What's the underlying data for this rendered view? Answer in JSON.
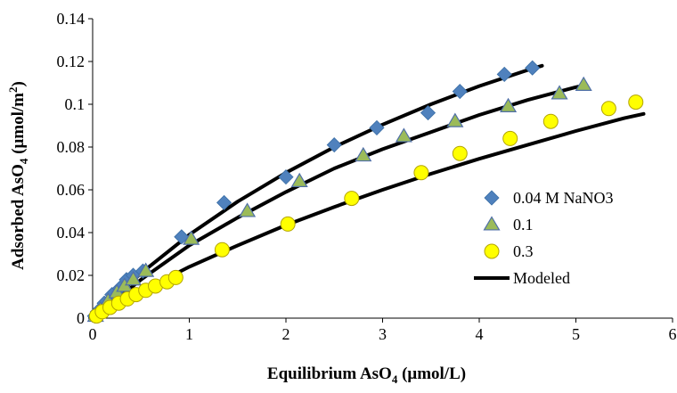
{
  "chart_data": {
    "type": "scatter",
    "xlabel": {
      "main": "Equilibrium AsO",
      "sub": "4",
      "tail": " (μmol/L)"
    },
    "ylabel": {
      "main": "Adsorbed AsO",
      "sub": "4",
      "tail": " (μmol/m",
      "sup": "2",
      "end": ")"
    },
    "xlim": [
      0,
      6
    ],
    "ylim": [
      0,
      0.14
    ],
    "xticks": [
      {
        "v": 0,
        "label": "0"
      },
      {
        "v": 1,
        "label": "1"
      },
      {
        "v": 2,
        "label": "2"
      },
      {
        "v": 3,
        "label": "3"
      },
      {
        "v": 4,
        "label": "4"
      },
      {
        "v": 5,
        "label": "5"
      },
      {
        "v": 6,
        "label": "6"
      }
    ],
    "yticks": [
      {
        "v": 0,
        "label": "0"
      },
      {
        "v": 0.02,
        "label": "0.02"
      },
      {
        "v": 0.04,
        "label": "0.04"
      },
      {
        "v": 0.06,
        "label": "0.06"
      },
      {
        "v": 0.08,
        "label": "0.08"
      },
      {
        "v": 0.1,
        "label": "0.1"
      },
      {
        "v": 0.12,
        "label": "0.12"
      },
      {
        "v": 0.14,
        "label": "0.14"
      }
    ],
    "series": [
      {
        "name": "0.04 M NaNO3",
        "marker": "diamond",
        "color": "#4f81bd",
        "points": [
          [
            0.02,
            0.001
          ],
          [
            0.05,
            0.003
          ],
          [
            0.12,
            0.007
          ],
          [
            0.2,
            0.011
          ],
          [
            0.28,
            0.014
          ],
          [
            0.35,
            0.018
          ],
          [
            0.42,
            0.02
          ],
          [
            0.52,
            0.022
          ],
          [
            0.92,
            0.038
          ],
          [
            1.36,
            0.054
          ],
          [
            2.0,
            0.066
          ],
          [
            2.5,
            0.081
          ],
          [
            2.94,
            0.089
          ],
          [
            3.47,
            0.096
          ],
          [
            3.8,
            0.106
          ],
          [
            4.26,
            0.114
          ],
          [
            4.55,
            0.117
          ]
        ]
      },
      {
        "name": "0.1",
        "marker": "triangle",
        "color": "#9bbb59",
        "points": [
          [
            0.03,
            0.001
          ],
          [
            0.08,
            0.004
          ],
          [
            0.16,
            0.008
          ],
          [
            0.25,
            0.012
          ],
          [
            0.33,
            0.015
          ],
          [
            0.42,
            0.018
          ],
          [
            0.55,
            0.022
          ],
          [
            1.02,
            0.037
          ],
          [
            1.6,
            0.05
          ],
          [
            2.14,
            0.064
          ],
          [
            2.8,
            0.076
          ],
          [
            3.22,
            0.085
          ],
          [
            3.75,
            0.092
          ],
          [
            4.3,
            0.099
          ],
          [
            4.83,
            0.105
          ],
          [
            5.08,
            0.109
          ]
        ]
      },
      {
        "name": "0.3",
        "marker": "circle",
        "color": "#ffff00",
        "points": [
          [
            0.04,
            0.001
          ],
          [
            0.1,
            0.003
          ],
          [
            0.18,
            0.005
          ],
          [
            0.27,
            0.007
          ],
          [
            0.36,
            0.009
          ],
          [
            0.45,
            0.011
          ],
          [
            0.55,
            0.013
          ],
          [
            0.65,
            0.015
          ],
          [
            0.77,
            0.017
          ],
          [
            0.86,
            0.019
          ],
          [
            1.34,
            0.032
          ],
          [
            2.02,
            0.044
          ],
          [
            2.68,
            0.056
          ],
          [
            3.4,
            0.068
          ],
          [
            3.8,
            0.077
          ],
          [
            4.32,
            0.084
          ],
          [
            4.74,
            0.092
          ],
          [
            5.34,
            0.098
          ],
          [
            5.62,
            0.101
          ]
        ]
      }
    ],
    "model_curves": [
      {
        "name": "Modeled",
        "color": "#000000",
        "points": [
          [
            0,
            0
          ],
          [
            0.25,
            0.0105
          ],
          [
            0.5,
            0.021
          ],
          [
            1.0,
            0.039
          ],
          [
            1.5,
            0.0545
          ],
          [
            2.0,
            0.068
          ],
          [
            2.5,
            0.08
          ],
          [
            3.0,
            0.0905
          ],
          [
            3.5,
            0.1
          ],
          [
            4.0,
            0.1085
          ],
          [
            4.5,
            0.116
          ],
          [
            4.65,
            0.118
          ]
        ]
      },
      {
        "points": [
          [
            0,
            0
          ],
          [
            0.25,
            0.009
          ],
          [
            0.5,
            0.018
          ],
          [
            1.0,
            0.034
          ],
          [
            1.5,
            0.047
          ],
          [
            2.0,
            0.059
          ],
          [
            2.5,
            0.07
          ],
          [
            3.0,
            0.079
          ],
          [
            3.5,
            0.087
          ],
          [
            4.0,
            0.095
          ],
          [
            4.5,
            0.102
          ],
          [
            5.0,
            0.108
          ],
          [
            5.1,
            0.109
          ]
        ]
      },
      {
        "points": [
          [
            0,
            0
          ],
          [
            0.25,
            0.0065
          ],
          [
            0.5,
            0.0125
          ],
          [
            1.0,
            0.024
          ],
          [
            1.5,
            0.034
          ],
          [
            2.0,
            0.0435
          ],
          [
            2.5,
            0.052
          ],
          [
            3.0,
            0.06
          ],
          [
            3.5,
            0.0675
          ],
          [
            4.0,
            0.0745
          ],
          [
            4.5,
            0.081
          ],
          [
            5.0,
            0.0875
          ],
          [
            5.5,
            0.0935
          ],
          [
            5.7,
            0.0955
          ]
        ]
      }
    ],
    "legend": {
      "placement": "right",
      "entries": [
        {
          "label": "0.04 M NaNO3",
          "marker": "diamond",
          "color": "#4f81bd"
        },
        {
          "label": "0.1",
          "marker": "triangle",
          "color": "#9bbb59"
        },
        {
          "label": "0.3",
          "marker": "circle",
          "color": "#ffff00"
        },
        {
          "label": "Modeled",
          "marker": "line",
          "color": "#000000"
        }
      ]
    },
    "grid": false
  }
}
